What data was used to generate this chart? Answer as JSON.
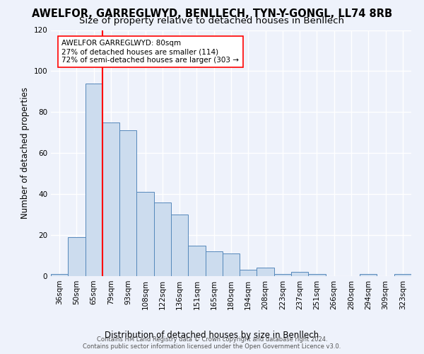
{
  "title": "AWELFOR, GARREGLWYD, BENLLECH, TYN-Y-GONGL, LL74 8RB",
  "subtitle": "Size of property relative to detached houses in Benllech",
  "xlabel": "Distribution of detached houses by size in Benllech",
  "ylabel": "Number of detached properties",
  "categories": [
    "36sqm",
    "50sqm",
    "65sqm",
    "79sqm",
    "93sqm",
    "108sqm",
    "122sqm",
    "136sqm",
    "151sqm",
    "165sqm",
    "180sqm",
    "194sqm",
    "208sqm",
    "223sqm",
    "237sqm",
    "251sqm",
    "266sqm",
    "280sqm",
    "294sqm",
    "309sqm",
    "323sqm"
  ],
  "bar_values": [
    1,
    19,
    94,
    75,
    71,
    41,
    36,
    30,
    15,
    12,
    11,
    3,
    4,
    1,
    2,
    1,
    0,
    0,
    1,
    0,
    1
  ],
  "bar_color": "#ccdcee",
  "bar_edge_color": "#5588bb",
  "red_line_index": 3,
  "annotation_line1": "AWELFOR GARREGLWYD: 80sqm",
  "annotation_line2": "27% of detached houses are smaller (114)",
  "annotation_line3": "72% of semi-detached houses are larger (303 →",
  "ylim": [
    0,
    120
  ],
  "yticks": [
    0,
    20,
    40,
    60,
    80,
    100,
    120
  ],
  "bg_color": "#eef2fb",
  "grid_color": "#ffffff",
  "footer": "Contains HM Land Registry data © Crown copyright and database right 2024.\nContains public sector information licensed under the Open Government Licence v3.0.",
  "title_fontsize": 10.5,
  "subtitle_fontsize": 9.5,
  "ylabel_fontsize": 8.5,
  "xlabel_fontsize": 8.5,
  "tick_fontsize": 7.5,
  "footer_fontsize": 6.0
}
